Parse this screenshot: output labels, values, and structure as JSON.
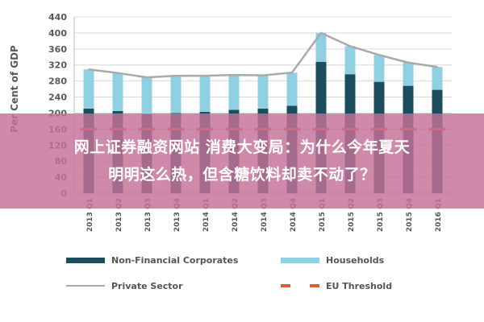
{
  "chart_data": {
    "type": "bar",
    "stacked": true,
    "ylabel": "Per Cent of GDP",
    "ylim": [
      0,
      440
    ],
    "yticks": [
      0,
      40,
      80,
      120,
      160,
      200,
      240,
      280,
      320,
      360,
      400,
      440
    ],
    "grid": true,
    "legend_position": "bottom",
    "categories": [
      "2013 Q1",
      "2013 Q2",
      "2013 Q3",
      "2013 Q4",
      "2014 Q1",
      "2014 Q2",
      "2014 Q3",
      "2014 Q4",
      "2015 Q1",
      "2015 Q2",
      "2015 Q3",
      "2015 Q4",
      "2016 Q1"
    ],
    "series": [
      {
        "name": "Non-Financial Corporates",
        "kind": "bar",
        "color": "#1c4e5f",
        "values": [
          211,
          205,
          197,
          200,
          203,
          208,
          211,
          218,
          328,
          297,
          278,
          268,
          258
        ]
      },
      {
        "name": "Households",
        "kind": "bar",
        "color": "#8fd1e2",
        "values": [
          98,
          95,
          92,
          93,
          90,
          87,
          83,
          83,
          72,
          70,
          67,
          58,
          57
        ]
      },
      {
        "name": "Private Sector",
        "kind": "line",
        "color": "#a9a9a9",
        "values": [
          309,
          300,
          289,
          293,
          293,
          295,
          294,
          301,
          400,
          367,
          345,
          326,
          315
        ]
      },
      {
        "name": "EU Threshold",
        "kind": "threshold",
        "color": "#e35a2f",
        "values": [
          160,
          160,
          160,
          160,
          160,
          160,
          160,
          160,
          160,
          160,
          160,
          160,
          160
        ]
      }
    ]
  },
  "overlay": {
    "line1": "网上证券融资网站 消费大变局：为什么今年夏天",
    "line2": "明明这么热，但含糖饮料却卖不动了？"
  }
}
